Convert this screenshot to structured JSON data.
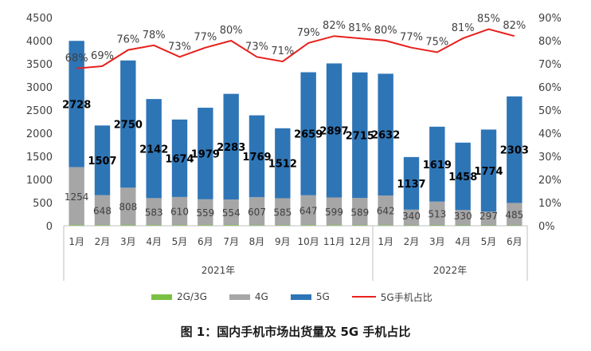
{
  "caption": "图 1：国内手机市场出货量及 5G 手机占比",
  "chart_data": {
    "type": "bar",
    "categories": [
      "1月",
      "2月",
      "3月",
      "4月",
      "5月",
      "6月",
      "7月",
      "8月",
      "9月",
      "10月",
      "11月",
      "12月",
      "1月",
      "2月",
      "3月",
      "4月",
      "5月",
      "6月"
    ],
    "year_groups": [
      {
        "label": "2021年",
        "count": 12
      },
      {
        "label": "2022年",
        "count": 6
      }
    ],
    "series": [
      {
        "name": "2G/3G",
        "kind": "bar",
        "color": "#7ac143",
        "values": [
          14,
          12,
          15,
          14,
          12,
          13,
          14,
          11,
          10,
          12,
          13,
          11,
          12,
          8,
          9,
          9,
          8,
          8
        ]
      },
      {
        "name": "4G",
        "kind": "bar",
        "color": "#a6a6a6",
        "values": [
          1254,
          648,
          808,
          583,
          610,
          559,
          554,
          607,
          585,
          647,
          599,
          589,
          642,
          340,
          513,
          330,
          297,
          485
        ]
      },
      {
        "name": "5G",
        "kind": "bar",
        "color": "#2e75b6",
        "values": [
          2728,
          1507,
          2750,
          2142,
          1674,
          1979,
          2283,
          1769,
          1512,
          2659,
          2897,
          2715,
          2632,
          1137,
          1619,
          1458,
          1774,
          2303
        ]
      },
      {
        "name": "5G手机占比",
        "kind": "line",
        "color": "#e8211d",
        "axis": "right",
        "values": [
          68,
          69,
          76,
          78,
          73,
          77,
          80,
          73,
          71,
          79,
          82,
          81,
          80,
          77,
          75,
          81,
          85,
          82
        ]
      }
    ],
    "y_left": {
      "min": 0,
      "max": 4500,
      "step": 500
    },
    "y_right": {
      "min": 0,
      "max": 90,
      "step": 10,
      "suffix": "%"
    },
    "legend_position": "bottom",
    "grid": false
  }
}
